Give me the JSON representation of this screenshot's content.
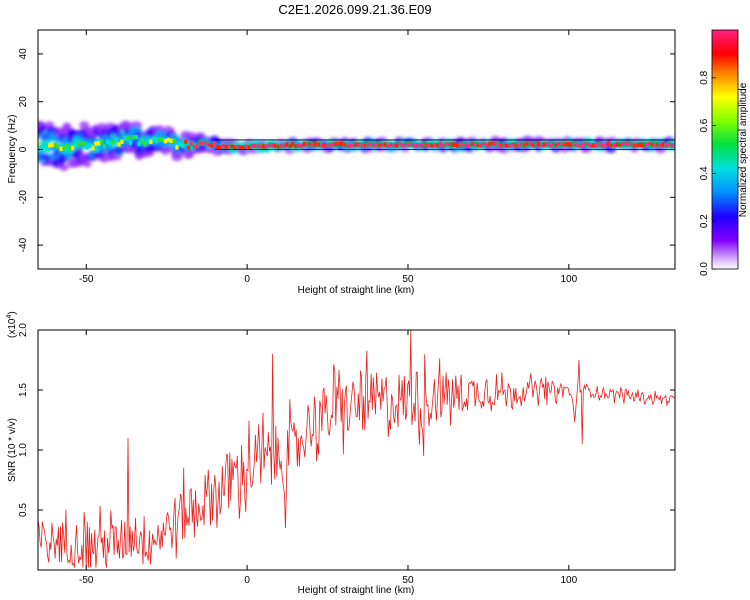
{
  "title": "C2E1.2026.099.21.36.E09",
  "chart_data": [
    {
      "type": "heatmap",
      "title": "C2E1.2026.099.21.36.E09",
      "xlabel": "Height of straight line (km)",
      "ylabel": "Frequency (Hz)",
      "xlim": [
        -65,
        133
      ],
      "ylim": [
        -50,
        50
      ],
      "xticks": [
        -50,
        0,
        50,
        100
      ],
      "yticks": [
        -40,
        -20,
        0,
        20,
        40
      ],
      "xtick_labels": [
        "-50",
        "0",
        "50",
        "100"
      ],
      "ytick_labels": [
        "-40",
        "-20",
        "0",
        "20",
        "40"
      ],
      "center_line_hz": [
        2,
        1,
        4,
        2,
        1,
        2,
        2,
        2
      ],
      "center_line_km": [
        -65,
        -50,
        -35,
        -20,
        -5,
        20,
        60,
        133
      ],
      "spread_hz_start": 10,
      "spread_hz_end": 1.5,
      "colorbar": {
        "label": "Normalized spectral amplitude",
        "range": [
          0,
          1
        ],
        "ticks": [
          0.0,
          0.2,
          0.4,
          0.6,
          0.8
        ],
        "tick_labels": [
          "0.0",
          "0.2",
          "0.4",
          "0.6",
          "0.8"
        ],
        "colormap": "rainbow (magenta-blue-cyan-green-yellow-red-magenta)"
      }
    },
    {
      "type": "line",
      "xlabel": "Height of straight line (km)",
      "ylabel": "SNR (10 * v/v)",
      "scale_label": "(x10",
      "scale_exponent": "4",
      "scale_close": ")",
      "xlim": [
        -65,
        133
      ],
      "ylim": [
        0,
        2.0
      ],
      "xticks": [
        -50,
        0,
        50,
        100
      ],
      "yticks": [
        0.5,
        1.0,
        1.5,
        2.0
      ],
      "xtick_labels": [
        "-50",
        "0",
        "50",
        "100"
      ],
      "ytick_labels": [
        "0.5",
        "1.0",
        "1.5",
        "2.0"
      ],
      "series": [
        {
          "name": "SNR",
          "color": "#e8201c",
          "trend_x": [
            -65,
            -50,
            -40,
            -35,
            -30,
            -20,
            -10,
            0,
            10,
            15,
            20,
            30,
            40,
            50,
            60,
            70,
            80,
            90,
            100,
            102,
            103,
            105,
            110,
            120,
            133
          ],
          "trend_y": [
            0.25,
            0.22,
            0.22,
            0.3,
            0.25,
            0.45,
            0.65,
            0.85,
            0.95,
            1.0,
            1.25,
            1.35,
            1.4,
            1.42,
            1.45,
            1.48,
            1.48,
            1.5,
            1.5,
            1.3,
            1.55,
            1.5,
            1.48,
            1.45,
            1.42
          ],
          "noise_x": [
            -65,
            -30,
            0,
            20,
            40,
            55,
            80,
            110,
            133
          ],
          "noise_amp": [
            0.22,
            0.25,
            0.35,
            0.3,
            0.32,
            0.3,
            0.12,
            0.06,
            0.04
          ],
          "spikes": [
            {
              "x": -37,
              "y": 1.1
            },
            {
              "x": 8,
              "y": 1.8
            },
            {
              "x": 12,
              "y": 0.35
            },
            {
              "x": 51,
              "y": 2.0
            },
            {
              "x": 55,
              "y": 0.95
            },
            {
              "x": 103,
              "y": 1.75
            },
            {
              "x": 104,
              "y": 1.05
            }
          ]
        }
      ]
    }
  ]
}
